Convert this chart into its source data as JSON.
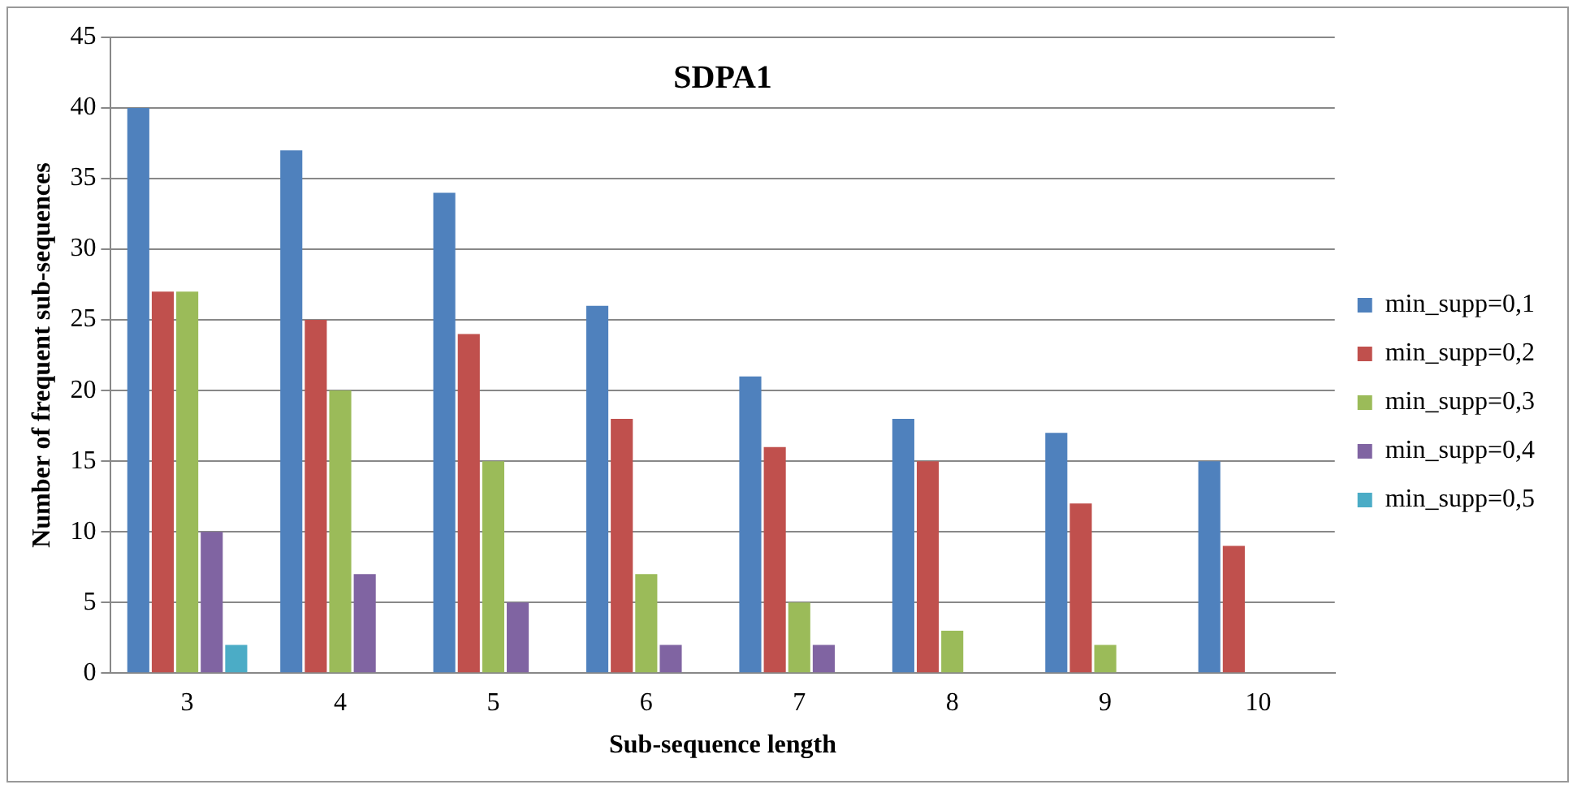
{
  "chart_data": {
    "type": "bar",
    "title": "SDPA1",
    "xlabel": "Sub-sequence length",
    "ylabel": "Number of frequent sub-sequences",
    "categories": [
      "3",
      "4",
      "5",
      "6",
      "7",
      "8",
      "9",
      "10"
    ],
    "series": [
      {
        "name": "min_supp=0,1",
        "color": "#4f81bd",
        "values": [
          40,
          37,
          34,
          26,
          21,
          18,
          17,
          15
        ]
      },
      {
        "name": "min_supp=0,2",
        "color": "#c0504d",
        "values": [
          27,
          25,
          24,
          18,
          16,
          15,
          12,
          9
        ]
      },
      {
        "name": "min_supp=0,3",
        "color": "#9bbb59",
        "values": [
          27,
          20,
          15,
          7,
          5,
          3,
          2,
          0
        ]
      },
      {
        "name": "min_supp=0,4",
        "color": "#8064a2",
        "values": [
          10,
          7,
          5,
          2,
          2,
          0,
          0,
          0
        ]
      },
      {
        "name": "min_supp=0,5",
        "color": "#4bacc6",
        "values": [
          2,
          0,
          0,
          0,
          0,
          0,
          0,
          0
        ]
      }
    ],
    "ylim": [
      0,
      45
    ],
    "yticks": [
      0,
      5,
      10,
      15,
      20,
      25,
      30,
      35,
      40,
      45
    ],
    "grid": "y",
    "legend": "right"
  }
}
